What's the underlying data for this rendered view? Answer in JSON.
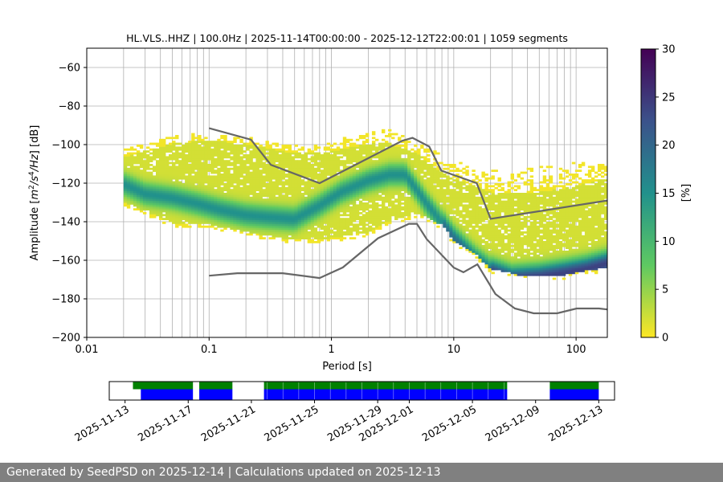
{
  "chart_data": [
    {
      "type": "heatmap",
      "title": "HL.VLS..HHZ | 100.0Hz | 2025-11-14T00:00:00 - 2025-12-12T22:00:01 | 1059 segments",
      "xlabel": "Period [s]",
      "ylabel_parts": [
        "Amplitude [",
        "m",
        "2",
        "/",
        "s",
        "4",
        "/",
        "Hz",
        "] [dB]"
      ],
      "xscale": "log",
      "xlim": [
        0.01,
        180
      ],
      "ylim": [
        -200,
        -50
      ],
      "x_ticks": [
        0.01,
        0.1,
        1,
        10,
        100
      ],
      "x_tick_labels": [
        "0.01",
        "0.1",
        "1",
        "10",
        "100"
      ],
      "y_ticks": [
        -200,
        -180,
        -160,
        -140,
        -120,
        -100,
        -80,
        -60
      ],
      "y_tick_labels": [
        "−200",
        "−180",
        "−160",
        "−140",
        "−120",
        "−100",
        "−80",
        "−60"
      ],
      "grid": true,
      "mode_curve": {
        "periods": [
          0.02,
          0.03,
          0.05,
          0.08,
          0.12,
          0.2,
          0.3,
          0.5,
          0.8,
          1.2,
          2,
          3,
          4,
          5,
          6,
          8,
          10,
          15,
          20,
          30,
          50,
          80,
          120,
          180
        ],
        "db": [
          -121,
          -126,
          -128,
          -131,
          -134,
          -137,
          -138,
          -139,
          -132,
          -125,
          -119,
          -116,
          -116,
          -124,
          -131,
          -141,
          -149,
          -160,
          -166,
          -170,
          -169,
          -167,
          -165,
          -162
        ]
      },
      "spread": {
        "periods": [
          0.02,
          0.05,
          0.1,
          0.2,
          0.5,
          1,
          2,
          3,
          5,
          8,
          10,
          15,
          20,
          40,
          80,
          180
        ],
        "upper": [
          -107,
          -100,
          -98,
          -100,
          -105,
          -104,
          -100,
          -100,
          -105,
          -115,
          -118,
          -122,
          -125,
          -126,
          -123,
          -118
        ],
        "lower": [
          -130,
          -141,
          -142,
          -146,
          -150,
          -149,
          -146,
          -140,
          -136,
          -142,
          -150,
          -157,
          -165,
          -169,
          -168,
          -164
        ],
        "scatter_upper": [
          -103,
          -96,
          -94,
          -96,
          -101,
          -99,
          -93,
          -93,
          -98,
          -105,
          -108,
          -112,
          -114,
          -113,
          -110,
          -109
        ]
      },
      "noise_models": {
        "nhnm": {
          "periods": [
            0.1,
            0.22,
            0.32,
            0.8,
            3.8,
            4.6,
            6.3,
            7.9,
            15.4,
            20,
            180
          ],
          "db": [
            -91.5,
            -97.4,
            -110.5,
            -120,
            -98,
            -96.5,
            -101,
            -113.5,
            -120,
            -138.5,
            -129
          ]
        },
        "nlnm": {
          "periods": [
            0.1,
            0.17,
            0.4,
            0.8,
            1.24,
            2.4,
            4.3,
            5,
            6,
            10,
            12,
            15.6,
            21.9,
            31.6,
            45,
            70,
            101,
            154,
            180
          ],
          "db": [
            -168,
            -166.7,
            -166.7,
            -169.2,
            -163.7,
            -148.6,
            -141.1,
            -141.1,
            -149,
            -163.8,
            -166.2,
            -162.1,
            -177.5,
            -185,
            -187.5,
            -187.5,
            -185,
            -185,
            -185.5
          ]
        }
      }
    },
    {
      "type": "colorbar",
      "label": "[%]",
      "vmin": 0,
      "vmax": 30,
      "ticks": [
        0,
        5,
        10,
        15,
        20,
        25,
        30
      ],
      "tick_labels": [
        "0",
        "5",
        "10",
        "15",
        "20",
        "25",
        "30"
      ],
      "colormap": [
        "#fde725",
        "#5ec962",
        "#21918c",
        "#3b528b",
        "#440154"
      ]
    },
    {
      "type": "timeline",
      "xlim": [
        "2025-11-12",
        "2025-12-14"
      ],
      "date_ticks": [
        "2025-11-13",
        "2025-11-17",
        "2025-11-21",
        "2025-11-25",
        "2025-11-29",
        "2025-12-01",
        "2025-12-05",
        "2025-12-09",
        "2025-12-13"
      ],
      "data_available": [
        [
          "2025-11-13.5",
          "2025-11-17.3"
        ],
        [
          "2025-11-17.7",
          "2025-11-19.8"
        ],
        [
          "2025-11-21.8",
          "2025-12-07.2"
        ],
        [
          "2025-12-09.9",
          "2025-12-13.0"
        ]
      ],
      "used_segments": [
        [
          "2025-11-14.0",
          "2025-11-17.3"
        ],
        [
          "2025-11-17.7",
          "2025-11-19.8"
        ],
        [
          "2025-11-21.8",
          "2025-12-07.2"
        ],
        [
          "2025-12-09.9",
          "2025-12-13.0"
        ]
      ],
      "colors": {
        "available": "#008000",
        "used": "#0000ff"
      }
    }
  ],
  "footer": "Generated by SeedPSD on 2025-12-14 | Calculations updated on 2025-12-13"
}
